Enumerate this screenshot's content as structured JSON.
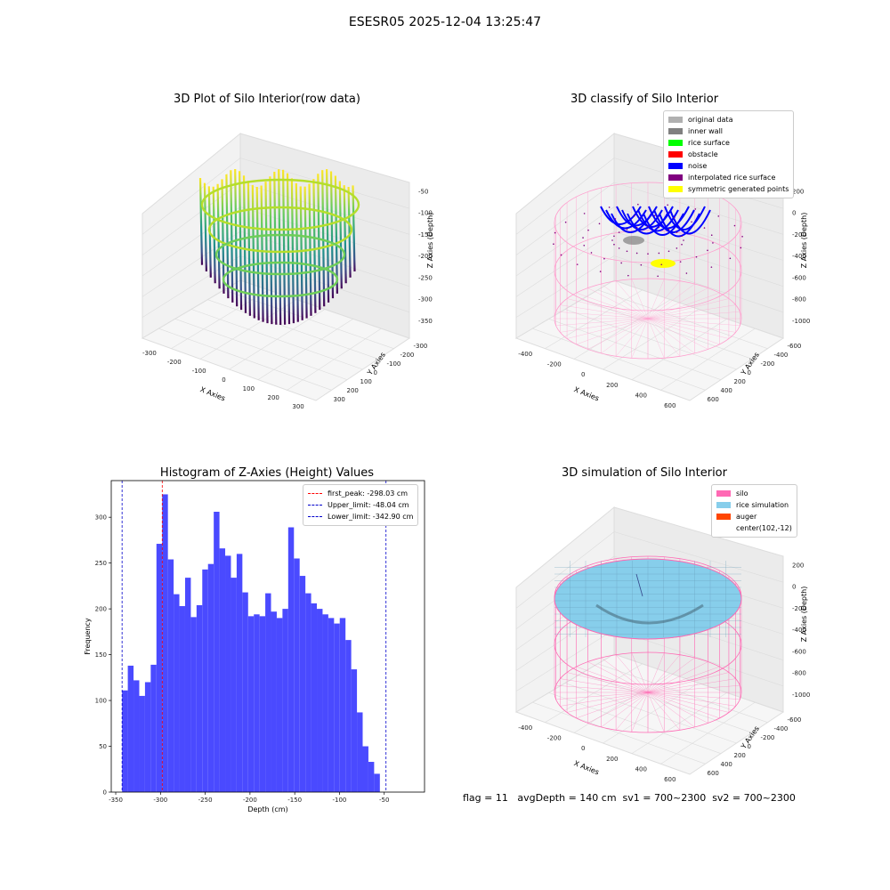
{
  "suptitle": "ESESR05 2025-12-04 13:25:47",
  "footer": "flag = 11   avgDepth = 140 cm  sv1 = 700~2300  sv2 = 700~2300",
  "colors": {
    "hist_bar": "#4a4aff",
    "first_peak": "#ff0000",
    "limits": "#0000cc",
    "silo": "#ff69b4",
    "rice": "#87ceeb",
    "auger": "#ff4500",
    "original": "#b0b0b0",
    "inner_wall": "#808080",
    "rice_surface": "#00ff00",
    "obstacle": "#ff0000",
    "noise": "#0000ff",
    "interpolated": "#800080",
    "symmetric": "#ffff00"
  },
  "plots": {
    "raw": {
      "title": "3D Plot of Silo Interior(row data)",
      "xlabel": "X Axies",
      "ylabel": "Y Axies",
      "zlabel": "Z Axies (Depth)",
      "xticks": [
        "-300",
        "-200",
        "-100",
        "0",
        "100",
        "200",
        "300"
      ],
      "yticks": [
        "-300",
        "-200",
        "-100",
        "0",
        "100",
        "200",
        "300"
      ],
      "zticks": [
        "-50",
        "-100",
        "-150",
        "-200",
        "-250",
        "-300",
        "-350"
      ]
    },
    "classify": {
      "title": "3D classify of Silo Interior",
      "xlabel": "X Axies",
      "ylabel": "Y Axies",
      "zlabel": "Z Axies (Depth)",
      "xticks": [
        "-400",
        "-200",
        "0",
        "200",
        "400",
        "600"
      ],
      "yticks": [
        "-600",
        "-400",
        "-200",
        "0",
        "200",
        "400",
        "600"
      ],
      "zticks": [
        "200",
        "0",
        "-200",
        "-400",
        "-600",
        "-800",
        "-1000"
      ],
      "legend": [
        {
          "label": "original data",
          "color": "#b0b0b0"
        },
        {
          "label": "inner wall",
          "color": "#808080"
        },
        {
          "label": "rice surface",
          "color": "#00ff00"
        },
        {
          "label": "obstacle",
          "color": "#ff0000"
        },
        {
          "label": "noise",
          "color": "#0000ff"
        },
        {
          "label": "interpolated rice surface",
          "color": "#800080"
        },
        {
          "label": "symmetric generated points",
          "color": "#ffff00"
        }
      ]
    },
    "simulation": {
      "title": "3D simulation of Silo Interior",
      "xlabel": "X Axies",
      "ylabel": "Y Axies",
      "zlabel": "Z Axies (Depth)",
      "xticks": [
        "-400",
        "-200",
        "0",
        "200",
        "400",
        "600"
      ],
      "yticks": [
        "-600",
        "-400",
        "-200",
        "0",
        "200",
        "400",
        "600"
      ],
      "zticks": [
        "200",
        "0",
        "-200",
        "-400",
        "-600",
        "-800",
        "-1000"
      ],
      "legend": [
        {
          "label": "silo",
          "color": "#ff69b4"
        },
        {
          "label": "rice simulation",
          "color": "#87ceeb"
        },
        {
          "label": "auger",
          "color": "#ff4500"
        },
        {
          "label": "center(102,-12)",
          "color": ""
        }
      ]
    }
  },
  "chart_data": {
    "type": "bar",
    "title": "Histogram of Z-Axies (Height) Values",
    "xlabel": "Depth (cm)",
    "ylabel": "Frequency",
    "xlim": [
      -355,
      -5
    ],
    "ylim": [
      0,
      340
    ],
    "xticks": [
      -350,
      -300,
      -250,
      -200,
      -150,
      -100,
      -50
    ],
    "yticks": [
      0,
      50,
      100,
      150,
      200,
      250,
      300
    ],
    "bin_start": -342.9,
    "bin_width": 6.4,
    "values": [
      111,
      138,
      122,
      105,
      120,
      139,
      271,
      325,
      254,
      216,
      203,
      234,
      191,
      204,
      243,
      249,
      306,
      266,
      258,
      234,
      260,
      218,
      192,
      194,
      192,
      217,
      197,
      190,
      200,
      289,
      255,
      236,
      217,
      206,
      200,
      194,
      190,
      184,
      190,
      166,
      134,
      87,
      50,
      33,
      20
    ],
    "lines": [
      {
        "label": "first_peak: -298.03 cm",
        "x": -298.03,
        "color": "#ff0000"
      },
      {
        "label": "Upper_limit: -48.04 cm",
        "x": -48.04,
        "color": "#0000cc"
      },
      {
        "label": "Lower_limit: -342.90 cm",
        "x": -342.9,
        "color": "#0000cc"
      }
    ],
    "legend_position": "top-right"
  }
}
